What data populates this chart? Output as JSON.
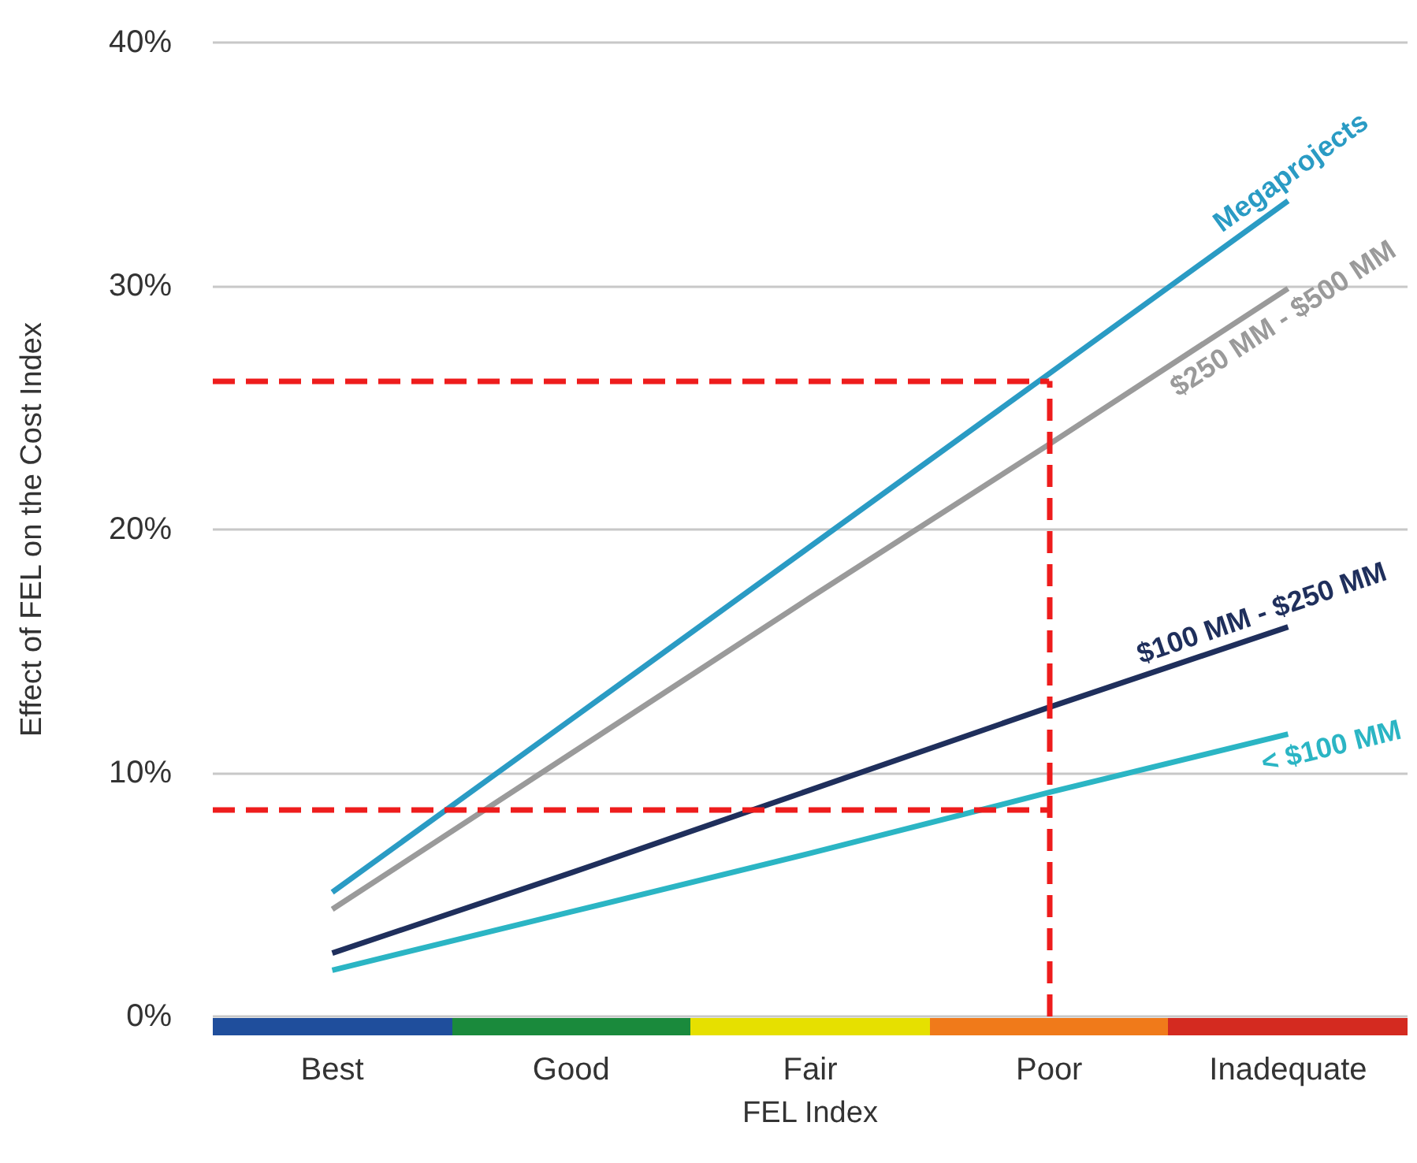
{
  "chart_data": {
    "type": "line",
    "xlabel": "FEL Index",
    "ylabel": "Effect of FEL on the Cost Index",
    "categories": [
      "Best",
      "Good",
      "Fair",
      "Poor",
      "Inadequate"
    ],
    "ylim": [
      0,
      40
    ],
    "yticks": [
      {
        "value": 0,
        "label": "0%"
      },
      {
        "value": 10,
        "label": "10%"
      },
      {
        "value": 20,
        "label": "20%"
      },
      {
        "value": 30,
        "label": "30%"
      },
      {
        "value": 40,
        "label": "40%"
      }
    ],
    "grid": "y",
    "legend": false,
    "marker": "none",
    "series": [
      {
        "name": "Megaprojects",
        "color": "#2a9bc4",
        "values": [
          5.1,
          12.2,
          19.3,
          26.4,
          33.5
        ]
      },
      {
        "name": "$250 MM - $500 MM",
        "color": "#9a9a9a",
        "values": [
          4.4,
          10.8,
          17.2,
          23.5,
          29.9
        ]
      },
      {
        "name": "$100 MM - $250 MM",
        "color": "#1f2f5c",
        "values": [
          2.6,
          5.9,
          9.3,
          12.7,
          16.0
        ]
      },
      {
        "name": "< $100 MM",
        "color": "#2bb5c4",
        "values": [
          1.9,
          4.3,
          6.7,
          9.2,
          11.6
        ]
      }
    ],
    "ref_lines": [
      {
        "axis": "x",
        "value": "Poor",
        "color": "#ee1c1c",
        "line_style": "dashed"
      },
      {
        "axis": "y",
        "value": 26.1,
        "color": "#ee1c1c",
        "line_style": "dashed"
      },
      {
        "axis": "y",
        "value": 8.5,
        "color": "#ee1c1c",
        "line_style": "dashed"
      }
    ]
  }
}
